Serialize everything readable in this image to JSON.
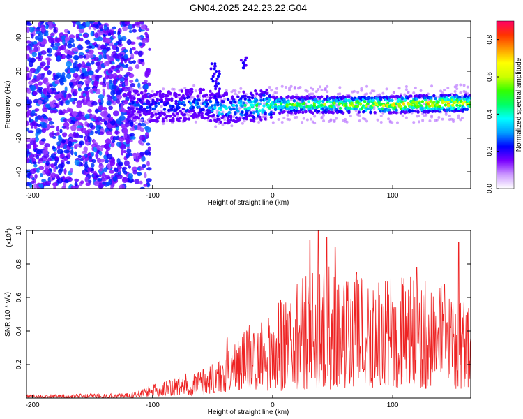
{
  "figure": {
    "title": "GN04.2025.242.23.22.G04"
  },
  "chart_data": [
    {
      "id": "spectrogram",
      "type": "heatmap",
      "title": "",
      "xlabel": "Height of straight line (km)",
      "ylabel": "Frequency (Hz)",
      "xlim": [
        -205,
        165
      ],
      "ylim": [
        -50,
        50
      ],
      "x_ticks": [
        -200,
        -100,
        0,
        100
      ],
      "x_tick_labels": [
        "-200",
        "-100",
        "0",
        "100"
      ],
      "y_ticks": [
        -40,
        -20,
        0,
        20,
        40
      ],
      "y_tick_labels": [
        "-40",
        "-20",
        "0",
        "20",
        "40"
      ],
      "grid": false,
      "colorbar": {
        "label": "Normalized spectral amplitude",
        "range": [
          0.0,
          0.9
        ],
        "ticks": [
          0.0,
          0.2,
          0.4,
          0.6,
          0.8
        ],
        "tick_labels": [
          "0.0",
          "0.2",
          "0.4",
          "0.6",
          "0.8"
        ],
        "colormap": [
          "#ffffff",
          "#cc99ff",
          "#7a00ff",
          "#0000ff",
          "#00a0ff",
          "#00ffff",
          "#00ff66",
          "#33ff00",
          "#ccff00",
          "#ffff00",
          "#ff9900",
          "#ff3300",
          "#ff0066"
        ]
      },
      "features": {
        "noise_region_x": [
          -205,
          -110
        ],
        "signal_center_freq": [
          {
            "x": -120,
            "f": 0
          },
          {
            "x": -100,
            "f": -1
          },
          {
            "x": -80,
            "f": -1
          },
          {
            "x": -60,
            "f": 1
          },
          {
            "x": -45,
            "f": -3
          },
          {
            "x": -40,
            "f": -2
          },
          {
            "x": -20,
            "f": -1
          },
          {
            "x": 0,
            "f": 0
          },
          {
            "x": 50,
            "f": 0
          },
          {
            "x": 100,
            "f": 0
          },
          {
            "x": 150,
            "f": 1
          },
          {
            "x": 165,
            "f": 1
          }
        ],
        "signal_amplitude": [
          {
            "x": -120,
            "a": 0.25
          },
          {
            "x": -100,
            "a": 0.3
          },
          {
            "x": -60,
            "a": 0.35
          },
          {
            "x": -30,
            "a": 0.45
          },
          {
            "x": 0,
            "a": 0.55
          },
          {
            "x": 50,
            "a": 0.65
          },
          {
            "x": 100,
            "a": 0.75
          },
          {
            "x": 150,
            "a": 0.8
          },
          {
            "x": 165,
            "a": 0.7
          }
        ],
        "spurs": [
          {
            "x": -48,
            "f_from": 5,
            "f_to": 25
          },
          {
            "x": -25,
            "f_from": 22,
            "f_to": 28
          }
        ]
      }
    },
    {
      "id": "snr",
      "type": "line",
      "title": "",
      "xlabel": "Height of straight line (km)",
      "ylabel": "SNR (10 * v/v)",
      "y_multiplier_label": "(x10",
      "y_multiplier_exp": "4",
      "y_multiplier_close": ")",
      "xlim": [
        -205,
        165
      ],
      "ylim": [
        0,
        1.0
      ],
      "x_ticks": [
        -200,
        -100,
        0,
        100
      ],
      "x_tick_labels": [
        "-200",
        "-100",
        "0",
        "100"
      ],
      "y_ticks": [
        0.2,
        0.4,
        0.6,
        0.8,
        1.0
      ],
      "y_tick_labels": [
        "0.2",
        "0.4",
        "0.6",
        "0.8",
        "1.0"
      ],
      "grid": false,
      "line_color": "#ee2222",
      "series": [
        {
          "envelope": [
            {
              "x": -205,
              "low": 0.0,
              "high": 0.02
            },
            {
              "x": -120,
              "low": 0.0,
              "high": 0.03
            },
            {
              "x": -100,
              "low": 0.01,
              "high": 0.08
            },
            {
              "x": -80,
              "low": 0.01,
              "high": 0.13
            },
            {
              "x": -60,
              "low": 0.02,
              "high": 0.18
            },
            {
              "x": -40,
              "low": 0.03,
              "high": 0.25
            },
            {
              "x": -30,
              "low": 0.05,
              "high": 0.38
            },
            {
              "x": -10,
              "low": 0.04,
              "high": 0.5
            },
            {
              "x": 10,
              "low": 0.04,
              "high": 0.62
            },
            {
              "x": 30,
              "low": 0.05,
              "high": 0.8
            },
            {
              "x": 50,
              "low": 0.05,
              "high": 0.82
            },
            {
              "x": 80,
              "low": 0.06,
              "high": 0.7
            },
            {
              "x": 110,
              "low": 0.05,
              "high": 0.75
            },
            {
              "x": 140,
              "low": 0.06,
              "high": 0.7
            },
            {
              "x": 165,
              "low": 0.05,
              "high": 0.6
            }
          ],
          "peaks": [
            {
              "x": 31,
              "y": 0.94
            },
            {
              "x": 38,
              "y": 1.0
            },
            {
              "x": 45,
              "y": 0.96
            },
            {
              "x": 52,
              "y": 0.9
            },
            {
              "x": 70,
              "y": 0.75
            },
            {
              "x": 120,
              "y": 0.78
            },
            {
              "x": 155,
              "y": 0.93
            },
            {
              "x": -38,
              "y": 0.36
            },
            {
              "x": -50,
              "y": 0.2
            }
          ]
        }
      ]
    }
  ]
}
